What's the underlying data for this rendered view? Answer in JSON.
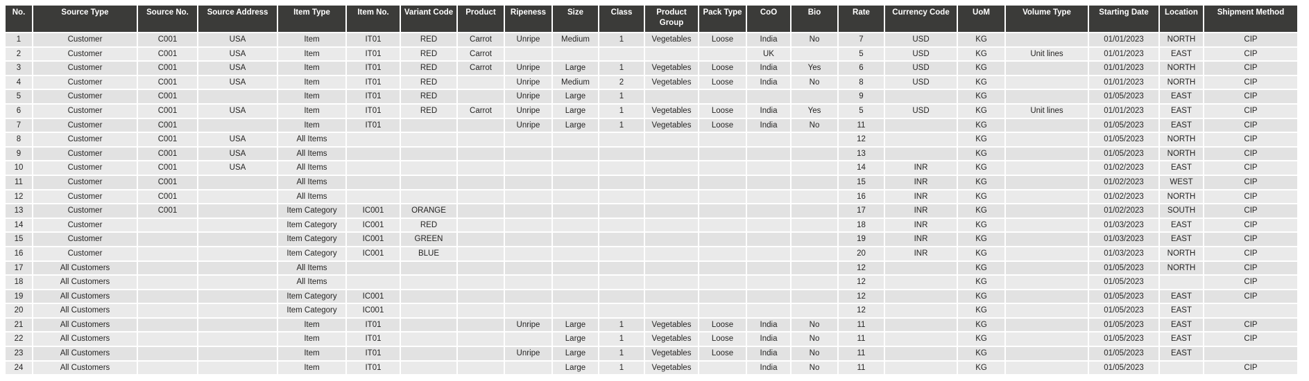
{
  "table": {
    "title": "price-list-lines",
    "columns": [
      "No.",
      "Source Type",
      "Source No.",
      "Source Address",
      "Item Type",
      "Item No.",
      "Variant Code",
      "Product",
      "Ripeness",
      "Size",
      "Class",
      "Product Group",
      "Pack Type",
      "CoO",
      "Bio",
      "Rate",
      "Currency Code",
      "UoM",
      "Volume Type",
      "Starting Date",
      "Location",
      "Shipment Method"
    ],
    "rows": [
      [
        "1",
        "Customer",
        "C001",
        "USA",
        "Item",
        "IT01",
        "RED",
        "Carrot",
        "Unripe",
        "Medium",
        "1",
        "Vegetables",
        "Loose",
        "India",
        "No",
        "7",
        "USD",
        "KG",
        "",
        "01/01/2023",
        "NORTH",
        "CIP"
      ],
      [
        "2",
        "Customer",
        "C001",
        "USA",
        "Item",
        "IT01",
        "RED",
        "Carrot",
        "",
        "",
        "",
        "",
        "",
        "UK",
        "",
        "5",
        "USD",
        "KG",
        "Unit lines",
        "01/01/2023",
        "EAST",
        "CIP"
      ],
      [
        "3",
        "Customer",
        "C001",
        "USA",
        "Item",
        "IT01",
        "RED",
        "Carrot",
        "Unripe",
        "Large",
        "1",
        "Vegetables",
        "Loose",
        "India",
        "Yes",
        "6",
        "USD",
        "KG",
        "",
        "01/01/2023",
        "NORTH",
        "CIP"
      ],
      [
        "4",
        "Customer",
        "C001",
        "USA",
        "Item",
        "IT01",
        "RED",
        "",
        "Unripe",
        "Medium",
        "2",
        "Vegetables",
        "Loose",
        "India",
        "No",
        "8",
        "USD",
        "KG",
        "",
        "01/01/2023",
        "NORTH",
        "CIP"
      ],
      [
        "5",
        "Customer",
        "C001",
        "",
        "Item",
        "IT01",
        "RED",
        "",
        "Unripe",
        "Large",
        "1",
        "",
        "",
        "",
        "",
        "9",
        "",
        "KG",
        "",
        "01/05/2023",
        "EAST",
        "CIP"
      ],
      [
        "6",
        "Customer",
        "C001",
        "USA",
        "Item",
        "IT01",
        "RED",
        "Carrot",
        "Unripe",
        "Large",
        "1",
        "Vegetables",
        "Loose",
        "India",
        "Yes",
        "5",
        "USD",
        "KG",
        "Unit lines",
        "01/01/2023",
        "EAST",
        "CIP"
      ],
      [
        "7",
        "Customer",
        "C001",
        "",
        "Item",
        "IT01",
        "",
        "",
        "Unripe",
        "Large",
        "1",
        "Vegetables",
        "Loose",
        "India",
        "No",
        "11",
        "",
        "KG",
        "",
        "01/05/2023",
        "EAST",
        "CIP"
      ],
      [
        "8",
        "Customer",
        "C001",
        "USA",
        "All Items",
        "",
        "",
        "",
        "",
        "",
        "",
        "",
        "",
        "",
        "",
        "12",
        "",
        "KG",
        "",
        "01/05/2023",
        "NORTH",
        "CIP"
      ],
      [
        "9",
        "Customer",
        "C001",
        "USA",
        "All Items",
        "",
        "",
        "",
        "",
        "",
        "",
        "",
        "",
        "",
        "",
        "13",
        "",
        "KG",
        "",
        "01/05/2023",
        "NORTH",
        "CIP"
      ],
      [
        "10",
        "Customer",
        "C001",
        "USA",
        "All Items",
        "",
        "",
        "",
        "",
        "",
        "",
        "",
        "",
        "",
        "",
        "14",
        "INR",
        "KG",
        "",
        "01/02/2023",
        "EAST",
        "CIP"
      ],
      [
        "11",
        "Customer",
        "C001",
        "",
        "All Items",
        "",
        "",
        "",
        "",
        "",
        "",
        "",
        "",
        "",
        "",
        "15",
        "INR",
        "KG",
        "",
        "01/02/2023",
        "WEST",
        "CIP"
      ],
      [
        "12",
        "Customer",
        "C001",
        "",
        "All Items",
        "",
        "",
        "",
        "",
        "",
        "",
        "",
        "",
        "",
        "",
        "16",
        "INR",
        "KG",
        "",
        "01/02/2023",
        "NORTH",
        "CIP"
      ],
      [
        "13",
        "Customer",
        "C001",
        "",
        "Item Category",
        "IC001",
        "ORANGE",
        "",
        "",
        "",
        "",
        "",
        "",
        "",
        "",
        "17",
        "INR",
        "KG",
        "",
        "01/02/2023",
        "SOUTH",
        "CIP"
      ],
      [
        "14",
        "Customer",
        "",
        "",
        "Item Category",
        "IC001",
        "RED",
        "",
        "",
        "",
        "",
        "",
        "",
        "",
        "",
        "18",
        "INR",
        "KG",
        "",
        "01/03/2023",
        "EAST",
        "CIP"
      ],
      [
        "15",
        "Customer",
        "",
        "",
        "Item Category",
        "IC001",
        "GREEN",
        "",
        "",
        "",
        "",
        "",
        "",
        "",
        "",
        "19",
        "INR",
        "KG",
        "",
        "01/03/2023",
        "EAST",
        "CIP"
      ],
      [
        "16",
        "Customer",
        "",
        "",
        "Item Category",
        "IC001",
        "BLUE",
        "",
        "",
        "",
        "",
        "",
        "",
        "",
        "",
        "20",
        "INR",
        "KG",
        "",
        "01/03/2023",
        "NORTH",
        "CIP"
      ],
      [
        "17",
        "All Customers",
        "",
        "",
        "All Items",
        "",
        "",
        "",
        "",
        "",
        "",
        "",
        "",
        "",
        "",
        "12",
        "",
        "KG",
        "",
        "01/05/2023",
        "NORTH",
        "CIP"
      ],
      [
        "18",
        "All Customers",
        "",
        "",
        "All Items",
        "",
        "",
        "",
        "",
        "",
        "",
        "",
        "",
        "",
        "",
        "12",
        "",
        "KG",
        "",
        "01/05/2023",
        "",
        "CIP"
      ],
      [
        "19",
        "All Customers",
        "",
        "",
        "Item Category",
        "IC001",
        "",
        "",
        "",
        "",
        "",
        "",
        "",
        "",
        "",
        "12",
        "",
        "KG",
        "",
        "01/05/2023",
        "EAST",
        "CIP"
      ],
      [
        "20",
        "All Customers",
        "",
        "",
        "Item Category",
        "IC001",
        "",
        "",
        "",
        "",
        "",
        "",
        "",
        "",
        "",
        "12",
        "",
        "KG",
        "",
        "01/05/2023",
        "EAST",
        ""
      ],
      [
        "21",
        "All Customers",
        "",
        "",
        "Item",
        "IT01",
        "",
        "",
        "Unripe",
        "Large",
        "1",
        "Vegetables",
        "Loose",
        "India",
        "No",
        "11",
        "",
        "KG",
        "",
        "01/05/2023",
        "EAST",
        "CIP"
      ],
      [
        "22",
        "All Customers",
        "",
        "",
        "Item",
        "IT01",
        "",
        "",
        "",
        "Large",
        "1",
        "Vegetables",
        "Loose",
        "India",
        "No",
        "11",
        "",
        "KG",
        "",
        "01/05/2023",
        "EAST",
        "CIP"
      ],
      [
        "23",
        "All Customers",
        "",
        "",
        "Item",
        "IT01",
        "",
        "",
        "Unripe",
        "Large",
        "1",
        "Vegetables",
        "Loose",
        "India",
        "No",
        "11",
        "",
        "KG",
        "",
        "01/05/2023",
        "EAST",
        ""
      ],
      [
        "24",
        "All Customers",
        "",
        "",
        "Item",
        "IT01",
        "",
        "",
        "",
        "Large",
        "1",
        "Vegetables",
        "",
        "India",
        "No",
        "11",
        "",
        "KG",
        "",
        "01/05/2023",
        "",
        "CIP"
      ]
    ],
    "style": {
      "header_bg": "#3b3b39",
      "header_text": "#ffffff",
      "row_dark": "#e2e2e2",
      "row_light": "#eaeaea",
      "grid_line": "#ffffff",
      "body_text": "#252423"
    }
  }
}
